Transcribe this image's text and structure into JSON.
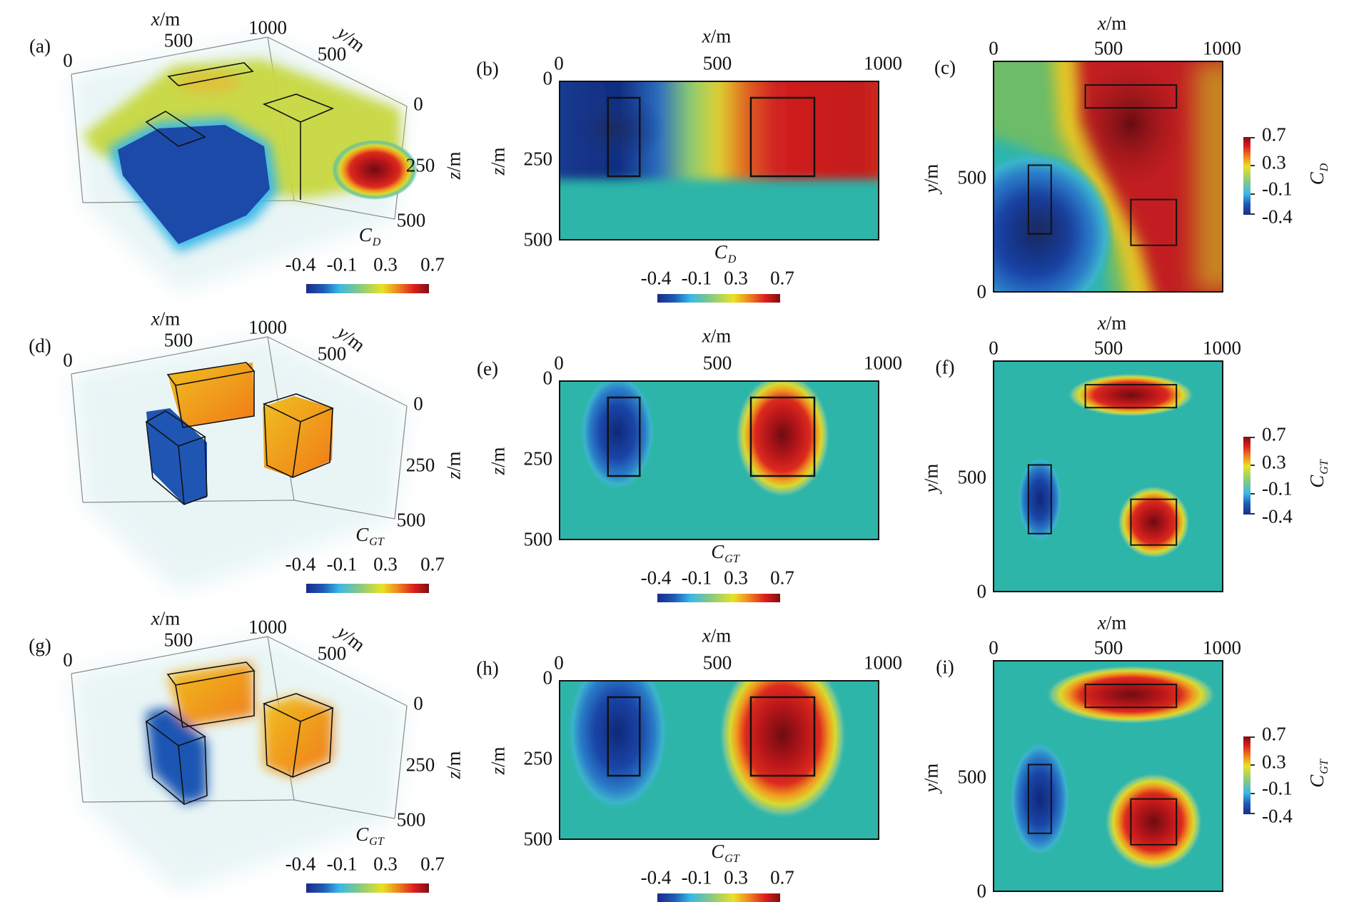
{
  "figure": {
    "rows": [
      {
        "panel3d": {
          "label": "(a)",
          "x_var": "x",
          "y_var": "y",
          "z_var": "z",
          "unit": "/m",
          "x_ticks": [
            "0",
            "500",
            "1000"
          ],
          "y_ticks": [
            "500"
          ],
          "z_ticks": [
            "0",
            "250",
            "500"
          ],
          "cb_symbol": "C",
          "cb_sub": "D",
          "cb_ticks": [
            "-0.4",
            "-0.1",
            "0.3",
            "0.7"
          ]
        },
        "section": {
          "label": "(b)",
          "x_var": "x",
          "z_var": "z",
          "unit": "/m",
          "x_ticks": [
            "0",
            "500",
            "1000"
          ],
          "z_ticks": [
            "0",
            "250",
            "500"
          ],
          "cb_symbol": "C",
          "cb_sub": "D",
          "cb_ticks": [
            "-0.4",
            "-0.1",
            "0.3",
            "0.7"
          ]
        },
        "plan": {
          "label": "(c)",
          "x_var": "x",
          "y_var": "y",
          "unit": "/m",
          "x_ticks": [
            "0",
            "500",
            "1000"
          ],
          "y_ticks": [
            "500",
            "0"
          ],
          "cb_symbol": "C",
          "cb_sub": "D",
          "cb_ticks": [
            "0.7",
            "0.3",
            "-0.1",
            "-0.4"
          ]
        }
      },
      {
        "panel3d": {
          "label": "(d)",
          "x_var": "x",
          "y_var": "y",
          "z_var": "z",
          "unit": "/m",
          "x_ticks": [
            "0",
            "500",
            "1000"
          ],
          "y_ticks": [
            "500"
          ],
          "z_ticks": [
            "0",
            "250",
            "500"
          ],
          "cb_symbol": "C",
          "cb_sub": "GT",
          "cb_ticks": [
            "-0.4",
            "-0.1",
            "0.3",
            "0.7"
          ]
        },
        "section": {
          "label": "(e)",
          "x_var": "x",
          "z_var": "z",
          "unit": "/m",
          "x_ticks": [
            "0",
            "500",
            "1000"
          ],
          "z_ticks": [
            "0",
            "250",
            "500"
          ],
          "cb_symbol": "C",
          "cb_sub": "GT",
          "cb_ticks": [
            "-0.4",
            "-0.1",
            "0.3",
            "0.7"
          ]
        },
        "plan": {
          "label": "(f)",
          "x_var": "x",
          "y_var": "y",
          "unit": "/m",
          "x_ticks": [
            "0",
            "500",
            "1000"
          ],
          "y_ticks": [
            "500",
            "0"
          ],
          "cb_symbol": "C",
          "cb_sub": "GT",
          "cb_ticks": [
            "0.7",
            "0.3",
            "-0.1",
            "-0.4"
          ]
        }
      },
      {
        "panel3d": {
          "label": "(g)",
          "x_var": "x",
          "y_var": "y",
          "z_var": "z",
          "unit": "/m",
          "x_ticks": [
            "0",
            "500",
            "1000"
          ],
          "y_ticks": [
            "500"
          ],
          "z_ticks": [
            "0",
            "250",
            "500"
          ],
          "cb_symbol": "C",
          "cb_sub": "GT",
          "cb_ticks": [
            "-0.4",
            "-0.1",
            "0.3",
            "0.7"
          ]
        },
        "section": {
          "label": "(h)",
          "x_var": "x",
          "z_var": "z",
          "unit": "/m",
          "x_ticks": [
            "0",
            "500",
            "1000"
          ],
          "z_ticks": [
            "0",
            "250",
            "500"
          ],
          "cb_symbol": "C",
          "cb_sub": "GT",
          "cb_ticks": [
            "-0.4",
            "-0.1",
            "0.3",
            "0.7"
          ]
        },
        "plan": {
          "label": "(i)",
          "x_var": "x",
          "y_var": "y",
          "unit": "/m",
          "x_ticks": [
            "0",
            "500",
            "1000"
          ],
          "y_ticks": [
            "500",
            "0"
          ],
          "cb_symbol": "C",
          "cb_sub": "GT",
          "cb_ticks": [
            "0.7",
            "0.3",
            "-0.1",
            "-0.4"
          ]
        }
      }
    ]
  },
  "chart_data": {
    "type": "heatmap",
    "colorbar_range": [
      -0.4,
      0.7
    ],
    "colorbar_ticks": [
      -0.4,
      -0.1,
      0.3,
      0.7
    ],
    "section_axes": {
      "xlim": [
        0,
        1000
      ],
      "zlim": [
        0,
        500
      ]
    },
    "plan_axes": {
      "xlim": [
        0,
        1000
      ],
      "ylim": [
        0,
        1000
      ]
    },
    "section_boxes": [
      {
        "x": [
          150,
          250
        ],
        "z": [
          50,
          300
        ]
      },
      {
        "x": [
          600,
          800
        ],
        "z": [
          50,
          300
        ]
      }
    ],
    "plan_boxes": [
      {
        "x": [
          400,
          800
        ],
        "y": [
          800,
          900
        ]
      },
      {
        "x": [
          150,
          250
        ],
        "y": [
          250,
          550
        ]
      },
      {
        "x": [
          600,
          800
        ],
        "y": [
          200,
          400
        ]
      }
    ],
    "panels": [
      "C_D 3D",
      "C_D x-z section",
      "C_D x-y plan",
      "C_GT 3D",
      "C_GT x-z section",
      "C_GT x-y plan",
      "C_GT 3D",
      "C_GT x-z section",
      "C_GT x-y plan"
    ]
  }
}
